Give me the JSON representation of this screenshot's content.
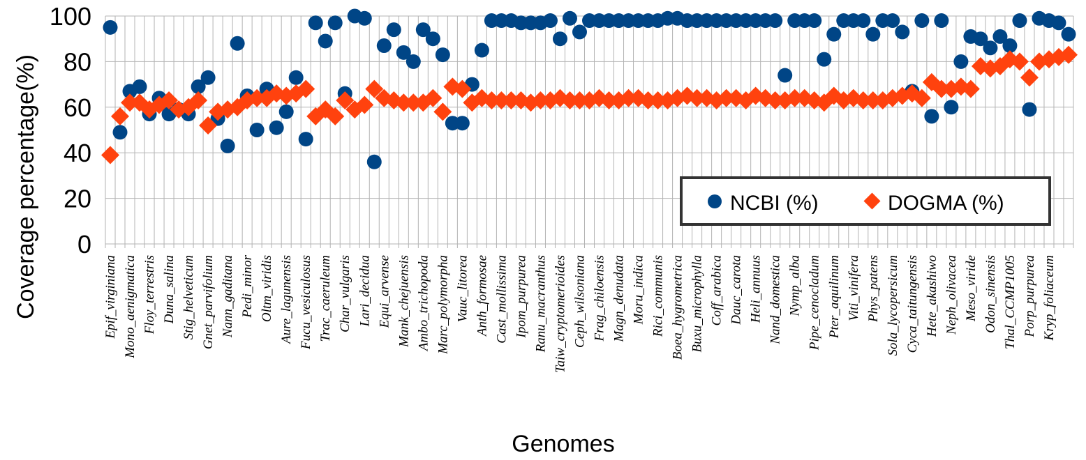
{
  "chart_data": {
    "type": "scatter",
    "title": "",
    "xlabel": "Genomes",
    "ylabel": "Coverage percentage(%)",
    "ylim": [
      0,
      100
    ],
    "yticks": [
      0,
      20,
      40,
      60,
      80,
      100
    ],
    "grid": true,
    "legend": {
      "placement": "bottom-right"
    },
    "point_count": 99,
    "x_tick_labels": [
      {
        "index": 0,
        "label": "Epif_virginiana"
      },
      {
        "index": 2,
        "label": "Mono_aenigmatica"
      },
      {
        "index": 4,
        "label": "Floy_terrestris"
      },
      {
        "index": 6,
        "label": "Duna_salina"
      },
      {
        "index": 8,
        "label": "Stig_helveticum"
      },
      {
        "index": 10,
        "label": "Gnet_parvifolium"
      },
      {
        "index": 12,
        "label": "Nann_gaditana"
      },
      {
        "index": 14,
        "label": "Pedi_minor"
      },
      {
        "index": 16,
        "label": "Oltm_viridis"
      },
      {
        "index": 18,
        "label": "Aure_lagunensis"
      },
      {
        "index": 20,
        "label": "Fucu_vesiculosus"
      },
      {
        "index": 22,
        "label": "Trac_caeruleum"
      },
      {
        "index": 24,
        "label": "Char_vulgaris"
      },
      {
        "index": 26,
        "label": "Lari_decidua"
      },
      {
        "index": 28,
        "label": "Equi_arvense"
      },
      {
        "index": 30,
        "label": "Mank_chejuensis"
      },
      {
        "index": 32,
        "label": "Ambo_trichopoda"
      },
      {
        "index": 34,
        "label": "Marc_polymorpha"
      },
      {
        "index": 36,
        "label": "Vauc_litorea"
      },
      {
        "index": 38,
        "label": "Anth_formosae"
      },
      {
        "index": 40,
        "label": "Cast_mollissima"
      },
      {
        "index": 42,
        "label": "Ipom_purpurea"
      },
      {
        "index": 44,
        "label": "Ranu_macranthus"
      },
      {
        "index": 46,
        "label": "Taiw_cryptomerioides"
      },
      {
        "index": 48,
        "label": "Ceph_wilsoniana"
      },
      {
        "index": 50,
        "label": "Frag_chiloensis"
      },
      {
        "index": 52,
        "label": "Magn_denudata"
      },
      {
        "index": 54,
        "label": "Moru_indica"
      },
      {
        "index": 56,
        "label": "Rici_communis"
      },
      {
        "index": 58,
        "label": "Boea_hygrometrica"
      },
      {
        "index": 60,
        "label": "Buxu_microphylla"
      },
      {
        "index": 62,
        "label": "Coff_arabica"
      },
      {
        "index": 64,
        "label": "Dauc_carota"
      },
      {
        "index": 66,
        "label": "Heli_annuus"
      },
      {
        "index": 68,
        "label": "Nand_domestica"
      },
      {
        "index": 70,
        "label": "Nymp_alba"
      },
      {
        "index": 72,
        "label": "Pipe_cenocladum"
      },
      {
        "index": 74,
        "label": "Pter_aquilinum"
      },
      {
        "index": 76,
        "label": "Viti_vinifera"
      },
      {
        "index": 78,
        "label": "Phys_patens"
      },
      {
        "index": 80,
        "label": "Sola_lycopersicum"
      },
      {
        "index": 82,
        "label": "Cyca_taitungensis"
      },
      {
        "index": 84,
        "label": "Hete_akashiwo"
      },
      {
        "index": 86,
        "label": "Neph_olivacea"
      },
      {
        "index": 88,
        "label": "Meso_viride"
      },
      {
        "index": 90,
        "label": "Odon_sinensis"
      },
      {
        "index": 92,
        "label": "Thal_CCMP1005"
      },
      {
        "index": 94,
        "label": "Porp_purpurea"
      },
      {
        "index": 96,
        "label": "Kryp_foliaceum"
      }
    ],
    "series": [
      {
        "name": "NCBI (%)",
        "marker": "circle",
        "color": "#004586",
        "values": [
          95,
          49,
          67,
          69,
          57,
          64,
          57,
          59,
          57,
          69,
          73,
          55,
          43,
          88,
          65,
          50,
          68,
          51,
          58,
          73,
          46,
          97,
          89,
          97,
          66,
          100,
          99,
          36,
          87,
          94,
          84,
          80,
          94,
          90,
          83,
          53,
          53,
          70,
          85,
          98,
          98,
          98,
          97,
          97,
          97,
          98,
          90,
          99,
          93,
          98,
          98,
          98,
          98,
          98,
          98,
          98,
          98,
          99,
          99,
          98,
          98,
          98,
          98,
          98,
          98,
          98,
          98,
          98,
          98,
          74,
          98,
          98,
          98,
          81,
          92,
          98,
          98,
          98,
          92,
          98,
          98,
          93,
          67,
          98,
          56,
          98,
          60,
          80,
          91,
          90,
          86,
          91,
          87,
          98,
          59,
          99,
          98,
          97,
          92
        ]
      },
      {
        "name": "DOGMA (%)",
        "marker": "diamond",
        "color": "#ff420e",
        "values": [
          39,
          56,
          62,
          62,
          59,
          61,
          63,
          59,
          60,
          63,
          52,
          58,
          59,
          60,
          63,
          64,
          64,
          66,
          65,
          66,
          68,
          56,
          59,
          56,
          63,
          59,
          61,
          68,
          64,
          63,
          62,
          62,
          62,
          64,
          58,
          69,
          68,
          62,
          64,
          63,
          63,
          63,
          63,
          62,
          63,
          63,
          64,
          63,
          63,
          63,
          64,
          63,
          63,
          64,
          64,
          63,
          63,
          63,
          64,
          65,
          64,
          64,
          63,
          64,
          64,
          63,
          65,
          64,
          63,
          63,
          64,
          64,
          63,
          62,
          65,
          63,
          64,
          63,
          63,
          63,
          64,
          65,
          66,
          64,
          71,
          68,
          68,
          69,
          68,
          78,
          77,
          78,
          81,
          80,
          73,
          80,
          81,
          82,
          83
        ]
      }
    ]
  }
}
